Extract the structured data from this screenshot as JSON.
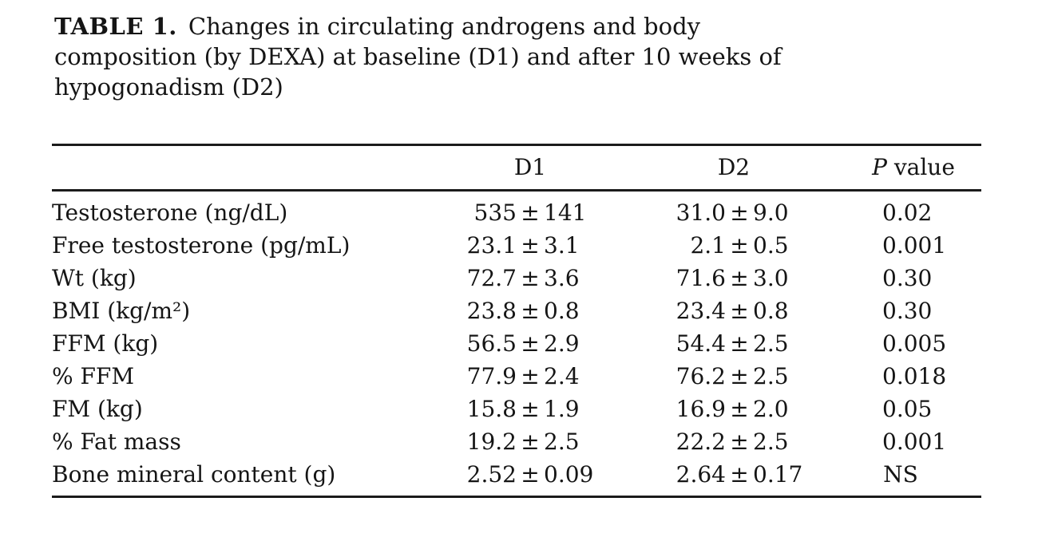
{
  "caption": {
    "label": "TABLE 1.",
    "lines": [
      "Changes in circulating androgens and body",
      "composition (by DEXA) at baseline (D1) and after 10 weeks of",
      "hypogonadism (D2)"
    ]
  },
  "table": {
    "pm": "±",
    "columns": {
      "label": "",
      "d1": "D1",
      "d2": "D2",
      "p_italic": "P",
      "p_rest": " value"
    },
    "rows": [
      {
        "label": "Testosterone (ng/dL)",
        "d1m": "535",
        "d1s": "141",
        "d2m": "31.0",
        "d2s": "9.0",
        "p": "0.02"
      },
      {
        "label": "Free testosterone (pg/mL)",
        "d1m": "23.1",
        "d1s": "3.1",
        "d2m": "2.1",
        "d2s": "0.5",
        "p": "0.001"
      },
      {
        "label": "Wt (kg)",
        "d1m": "72.7",
        "d1s": "3.6",
        "d2m": "71.6",
        "d2s": "3.0",
        "p": "0.30"
      },
      {
        "label": "BMI (kg/m²)",
        "d1m": "23.8",
        "d1s": "0.8",
        "d2m": "23.4",
        "d2s": "0.8",
        "p": "0.30"
      },
      {
        "label": "FFM (kg)",
        "d1m": "56.5",
        "d1s": "2.9",
        "d2m": "54.4",
        "d2s": "2.5",
        "p": "0.005"
      },
      {
        "label": "% FFM",
        "d1m": "77.9",
        "d1s": "2.4",
        "d2m": "76.2",
        "d2s": "2.5",
        "p": "0.018"
      },
      {
        "label": "FM (kg)",
        "d1m": "15.8",
        "d1s": "1.9",
        "d2m": "16.9",
        "d2s": "2.0",
        "p": "0.05"
      },
      {
        "label": "% Fat mass",
        "d1m": "19.2",
        "d1s": "2.5",
        "d2m": "22.2",
        "d2s": "2.5",
        "p": "0.001"
      },
      {
        "label": "Bone mineral content (g)",
        "d1m": "2.52",
        "d1s": "0.09",
        "d2m": "2.64",
        "d2s": "0.17",
        "p": "NS"
      }
    ]
  }
}
